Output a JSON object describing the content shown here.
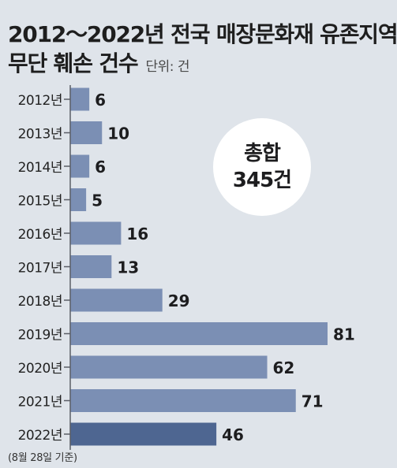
{
  "chart_data": {
    "type": "bar",
    "orientation": "horizontal",
    "title": "2012～2022년 전국 매장문화재 유존지역",
    "title_line2": "무단 훼손 건수",
    "unit_label": "단위: 건",
    "categories": [
      "2012년",
      "2013년",
      "2014년",
      "2015년",
      "2016년",
      "2017년",
      "2018년",
      "2019년",
      "2020년",
      "2021년",
      "2022년"
    ],
    "values": [
      6,
      10,
      6,
      5,
      16,
      13,
      29,
      81,
      62,
      71,
      46
    ],
    "highlight_index": 10,
    "xlim": [
      0,
      81
    ],
    "grid": false,
    "legend": "none",
    "summary_label": "총합",
    "summary_value": "345건",
    "footnote": "(8월 28일 기준)",
    "colors": {
      "bar": "#7b8fb4",
      "bar_highlight": "#4e6691",
      "axis": "#5b5e66",
      "background": "#dfe4ea",
      "circle": "#ffffff"
    }
  }
}
